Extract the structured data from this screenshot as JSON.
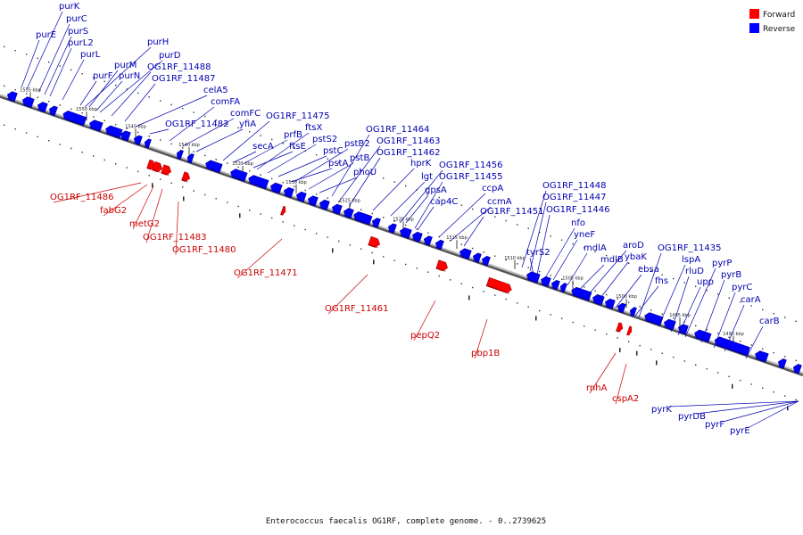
{
  "legend": [
    {
      "label": "Forward",
      "color": "#ff0000"
    },
    {
      "label": "Reverse",
      "color": "#0000ff"
    }
  ],
  "caption": "Enterococcus faecalis OG1RF, complete genome. - 0..2739625",
  "colors": {
    "forward": "#ff0000",
    "forward_dark": "#a00000",
    "reverse": "#0000ff",
    "reverse_dark": "#000090",
    "label_forward": "#cc0000",
    "label_reverse": "#0000b0",
    "backbone": "#888888"
  },
  "ticks": [
    "1555 kbp",
    "1550 kbp",
    "1545 kbp",
    "1540 kbp",
    "1535 kbp",
    "1530 kbp",
    "1525 kbp",
    "1520 kbp",
    "1515 kbp",
    "1510 kbp",
    "1505 kbp",
    "1500 kbp",
    "1495 kbp",
    "1490 kbp"
  ],
  "reverse_labels": [
    "purK",
    "purC",
    "purS",
    "purE",
    "purL2",
    "purL",
    "purH",
    "purD",
    "purM",
    "purF",
    "purN",
    "OG1RF_11488",
    "OG1RF_11487",
    "celA5",
    "comFA",
    "comFC",
    "OG1RF_11482",
    "yfiA",
    "OG1RF_11475",
    "ftsX",
    "prfB",
    "pstS2",
    "ftsE",
    "secA",
    "pstB2",
    "pstC",
    "pstB",
    "pstA",
    "phoU",
    "OG1RF_11464",
    "OG1RF_11463",
    "OG1RF_11462",
    "hprK",
    "OG1RF_11456",
    "lgt",
    "OG1RF_11455",
    "gpsA",
    "ccpA",
    "cap4C",
    "ccmA",
    "OG1RF_11451",
    "OG1RF_11448",
    "OG1RF_11447",
    "OG1RF_11446",
    "nfo",
    "yneF",
    "tyrS2",
    "aroD",
    "mdlA",
    "ybaK",
    "mdlB",
    "ebsa",
    "OG1RF_11435",
    "lspA",
    "fhs",
    "rluD",
    "pyrP",
    "upp",
    "pyrB",
    "pyrC",
    "carA",
    "carB",
    "pyrK",
    "pyrDB",
    "pyrF",
    "pyrE"
  ],
  "forward_labels": [
    "OG1RF_11486",
    "fabG2",
    "metG2",
    "OG1RF_11483",
    "OG1RF_11480",
    "OG1RF_11471",
    "OG1RF_11461",
    "pepQ2",
    "pbp1B",
    "rnhA",
    "cspA2"
  ]
}
